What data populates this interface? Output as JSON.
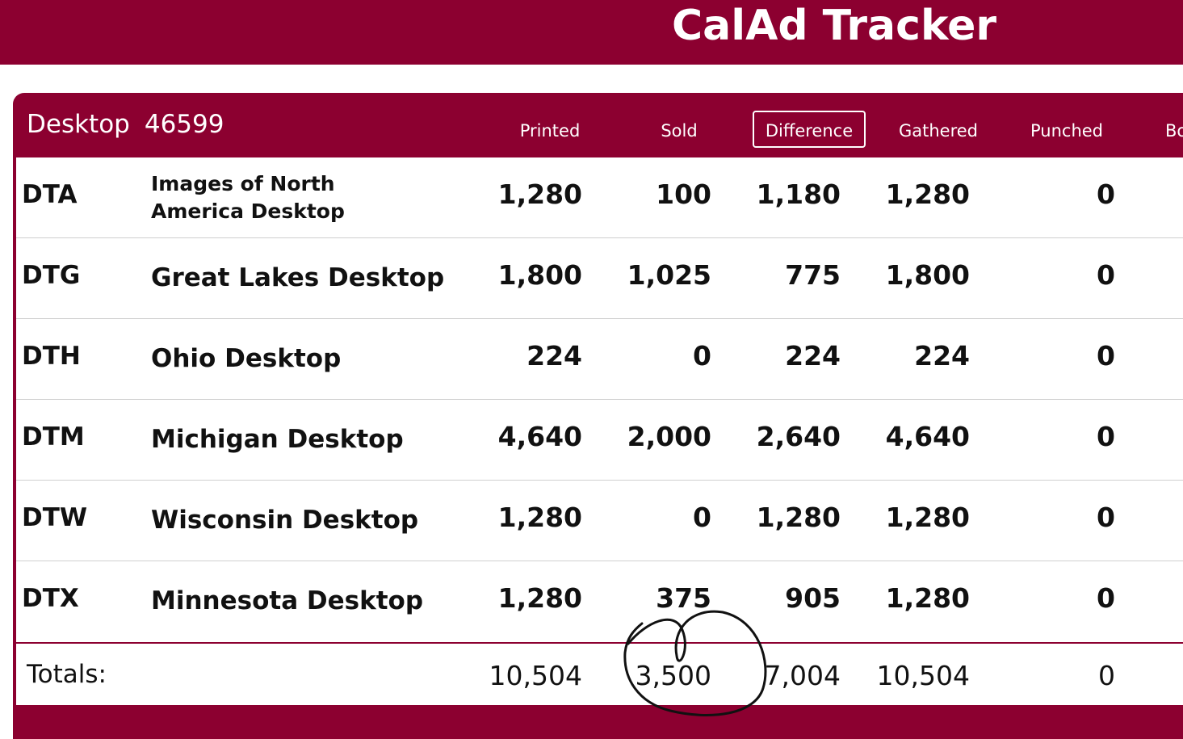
{
  "header": {
    "title": "CalAd Tracker"
  },
  "panel": {
    "label": "Desktop",
    "number": "46599",
    "columns": {
      "printed": "Printed",
      "sold": "Sold",
      "difference": "Difference",
      "gathered": "Gathered",
      "punched": "Punched",
      "next_partial": "Bo"
    }
  },
  "rows": [
    {
      "code": "DTA",
      "name": "Images of North America Desktop",
      "printed": "1,280",
      "sold": "100",
      "difference": "1,180",
      "gathered": "1,280",
      "punched": "0"
    },
    {
      "code": "DTG",
      "name": "Great Lakes Desktop",
      "printed": "1,800",
      "sold": "1,025",
      "difference": "775",
      "gathered": "1,800",
      "punched": "0"
    },
    {
      "code": "DTH",
      "name": "Ohio Desktop",
      "printed": "224",
      "sold": "0",
      "difference": "224",
      "gathered": "224",
      "punched": "0"
    },
    {
      "code": "DTM",
      "name": "Michigan Desktop",
      "printed": "4,640",
      "sold": "2,000",
      "difference": "2,640",
      "gathered": "4,640",
      "punched": "0"
    },
    {
      "code": "DTW",
      "name": "Wisconsin Desktop",
      "printed": "1,280",
      "sold": "0",
      "difference": "1,280",
      "gathered": "1,280",
      "punched": "0"
    },
    {
      "code": "DTX",
      "name": "Minnesota Desktop",
      "printed": "1,280",
      "sold": "375",
      "difference": "905",
      "gathered": "1,280",
      "punched": "0"
    }
  ],
  "totals": {
    "label": "Totals:",
    "printed": "10,504",
    "sold": "3,500",
    "difference": "7,004",
    "gathered": "10,504",
    "punched": "0"
  },
  "colors": {
    "brand": "#8c0030",
    "background": "#ffffff",
    "text": "#111111"
  }
}
